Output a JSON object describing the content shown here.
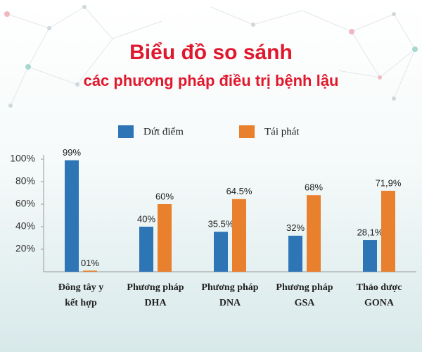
{
  "chart_data": {
    "type": "bar",
    "title": "Biểu đồ so sánh",
    "subtitle": "các phương pháp điều trị bệnh lậu",
    "categories": [
      "Đông tây y\nkết hợp",
      "Phương pháp\nDHA",
      "Phương pháp\nDNA",
      "Phương pháp\nGSA",
      "Thảo dược\nGONA"
    ],
    "series": [
      {
        "name": "Dứt điểm",
        "color": "#2e75b6",
        "values": [
          99,
          40,
          35.5,
          32,
          28.1
        ],
        "value_labels": [
          "99%",
          "40%",
          "35.5%",
          "32%",
          "28,1%"
        ]
      },
      {
        "name": "Tái phát",
        "color": "#e8802e",
        "values": [
          1,
          60,
          64.5,
          68,
          71.9
        ],
        "value_labels": [
          "01%",
          "60%",
          "64.5%",
          "68%",
          "71,9%"
        ]
      }
    ],
    "ylim": [
      0,
      100
    ],
    "yticks": [
      {
        "value": 20,
        "label": "20%"
      },
      {
        "value": 40,
        "label": "40%"
      },
      {
        "value": 60,
        "label": "60%"
      },
      {
        "value": 80,
        "label": "80%"
      },
      {
        "value": 100,
        "label": "100%"
      }
    ],
    "grid": false,
    "legend": "top"
  }
}
